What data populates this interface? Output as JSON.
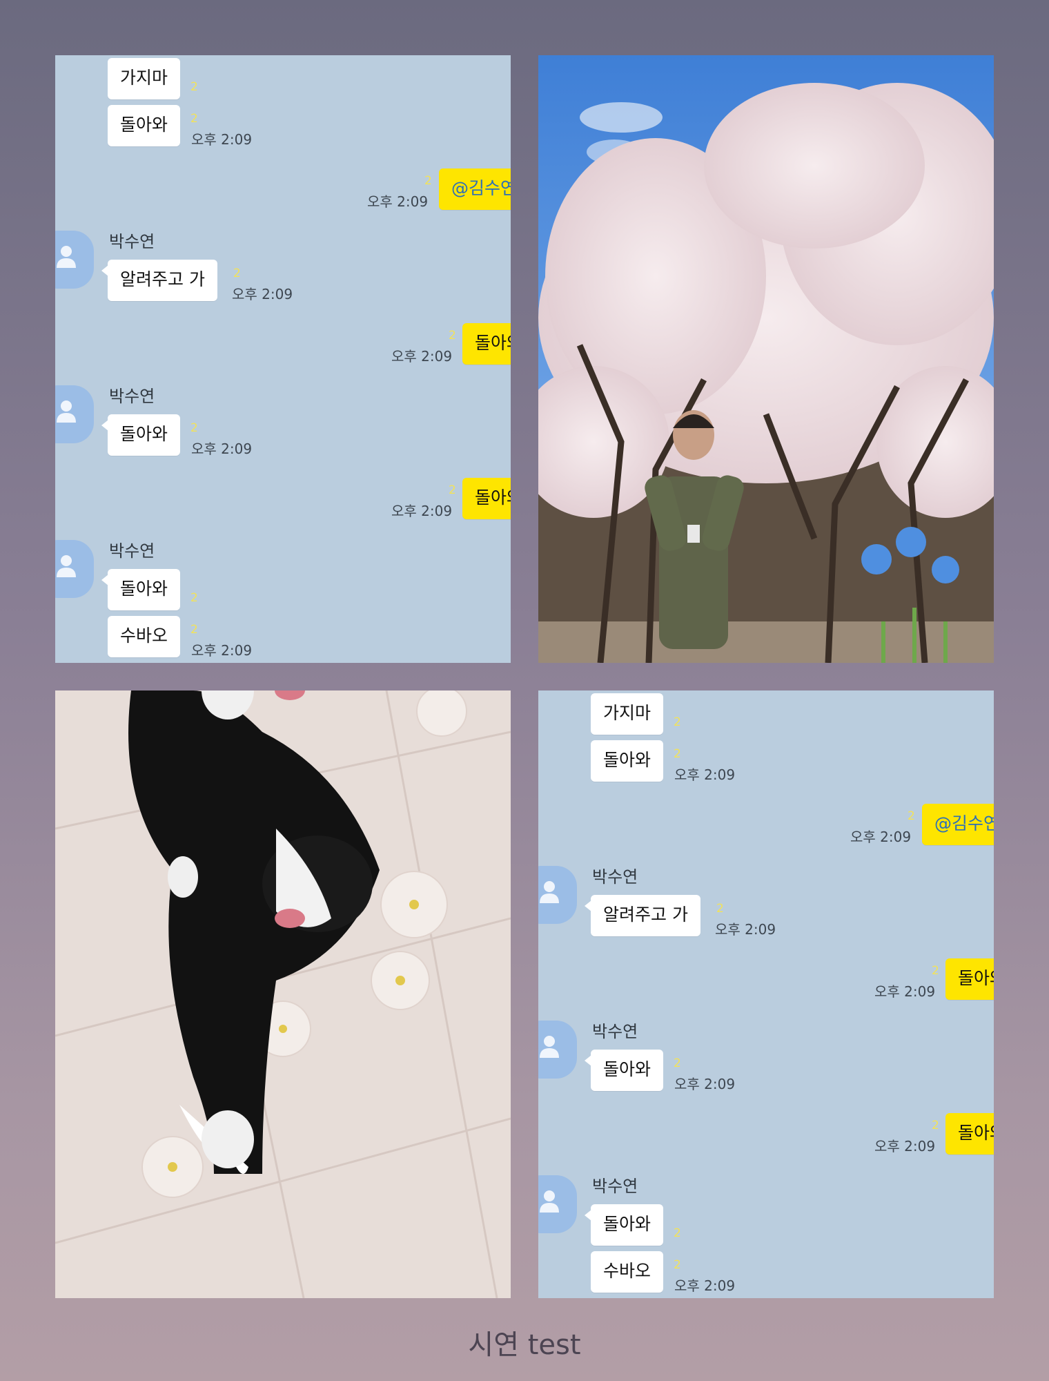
{
  "chat": {
    "messages": {
      "m1": "가지마",
      "m2": "돌아와",
      "m3": "@김수연",
      "m4": "알려주고 가",
      "m5": "돌아와",
      "m6": "돌아와",
      "m7": "돌아와",
      "m8": "돌아와",
      "m9": "수바오"
    },
    "sender": "박수연",
    "time": "오후 2:09",
    "unread": "2"
  },
  "photos": {
    "top_right": "person in camouflage uniform in front of cherry blossom trees with blue flower stickers",
    "bottom_left": "black and white cat yawning on floral quilt"
  },
  "caption": "시연 test",
  "colors": {
    "chat_bg": "#bacdde",
    "my_bubble": "#fee500",
    "avatar": "#9bbde6"
  }
}
